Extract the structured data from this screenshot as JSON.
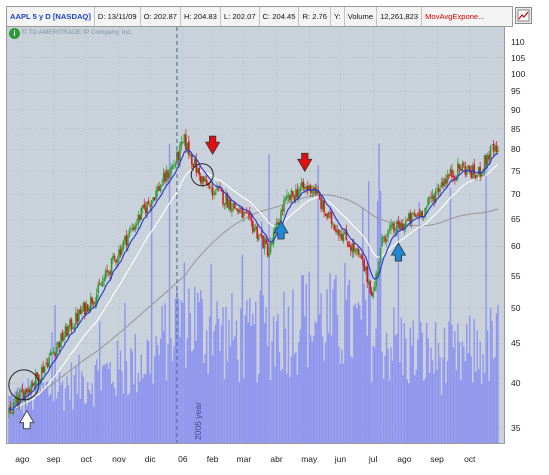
{
  "header": {
    "symbol": "AAPL 5 y D [NASDAQ]",
    "date": "D: 13/11/09",
    "open": "O: 202.87",
    "high": "H: 204.83",
    "low": "L: 202.07",
    "close": "C: 204.45",
    "range": "R: 2.76",
    "y": "Y:",
    "volume_label": "Volume",
    "volume_value": "12,261,823",
    "study": "MovAvgExpone..."
  },
  "watermark": "© TD AMERITRADE IP Company, Inc.",
  "year_marker": "2005 year",
  "icons": {
    "logo": "td-ameritrade-logo-icon",
    "settings": "chart-settings-icon",
    "sell": "red-down-arrow-icon",
    "buy": "blue-up-arrow-icon",
    "start": "white-up-arrow-icon"
  },
  "colors": {
    "background": "#c9d1db",
    "candle_up": "#2f9b2f",
    "candle_down": "#d11a1a",
    "ema_fast": "#2233dd",
    "ema_medium": "#ffffff",
    "sma_long": "#9a9a9a",
    "volume": "#8f95ee",
    "sell_arrow": "#e01010",
    "buy_arrow": "#1e88d6"
  },
  "chart_data": {
    "type": "candlestick",
    "y_scale": "log",
    "ylim": [
      33.5,
      115
    ],
    "y_ticks": [
      35,
      40,
      45,
      50,
      55,
      60,
      65,
      70,
      75,
      80,
      85,
      90,
      95,
      100,
      105,
      110
    ],
    "x_ticks": [
      "ago",
      "sep",
      "oct",
      "nov",
      "dic",
      "06",
      "feb",
      "mar",
      "abr",
      "may",
      "jun",
      "jul",
      "ago",
      "sep",
      "oct"
    ],
    "x_tick_index": [
      9,
      30,
      52,
      74,
      95,
      117,
      137,
      158,
      180,
      202,
      223,
      245,
      266,
      288,
      310
    ],
    "year_marker_index": 113,
    "bar_count": 330,
    "price_path": {
      "index": [
        0,
        8,
        20,
        40,
        60,
        80,
        100,
        112,
        118,
        128,
        135,
        140,
        150,
        165,
        175,
        185,
        195,
        205,
        213,
        225,
        237,
        245,
        252,
        265,
        280,
        292,
        305,
        315,
        325,
        329
      ],
      "close": [
        36.5,
        38.5,
        41,
        47,
        52.5,
        62,
        71,
        77,
        82,
        74,
        71,
        70.5,
        68,
        63.5,
        59,
        68,
        71,
        71.5,
        66,
        62,
        57.5,
        52,
        62,
        64,
        67,
        73,
        76,
        74,
        80,
        79
      ]
    },
    "volume_path": {
      "index": [
        0,
        40,
        80,
        100,
        117,
        130,
        160,
        200,
        240,
        270,
        300,
        329
      ],
      "level": [
        0.1,
        0.14,
        0.18,
        0.22,
        0.32,
        0.28,
        0.24,
        0.3,
        0.27,
        0.22,
        0.2,
        0.24
      ]
    },
    "series": [
      {
        "type": "candles"
      },
      {
        "type": "ema",
        "period": 10
      },
      {
        "type": "ema",
        "period": 30
      },
      {
        "type": "sma",
        "period": 120
      },
      {
        "type": "volume"
      }
    ],
    "annotations": {
      "circles": [
        {
          "index": 10,
          "price": 39.8
        },
        {
          "index": 130,
          "price": 74.2
        }
      ],
      "sell_arrows": [
        {
          "index": 137,
          "price": 81
        },
        {
          "index": 199,
          "price": 77
        }
      ],
      "buy_arrows": [
        {
          "index": 183,
          "price": 63
        },
        {
          "index": 262,
          "price": 59
        }
      ],
      "start_arrow": {
        "index": 12,
        "price": 35.9
      }
    }
  }
}
